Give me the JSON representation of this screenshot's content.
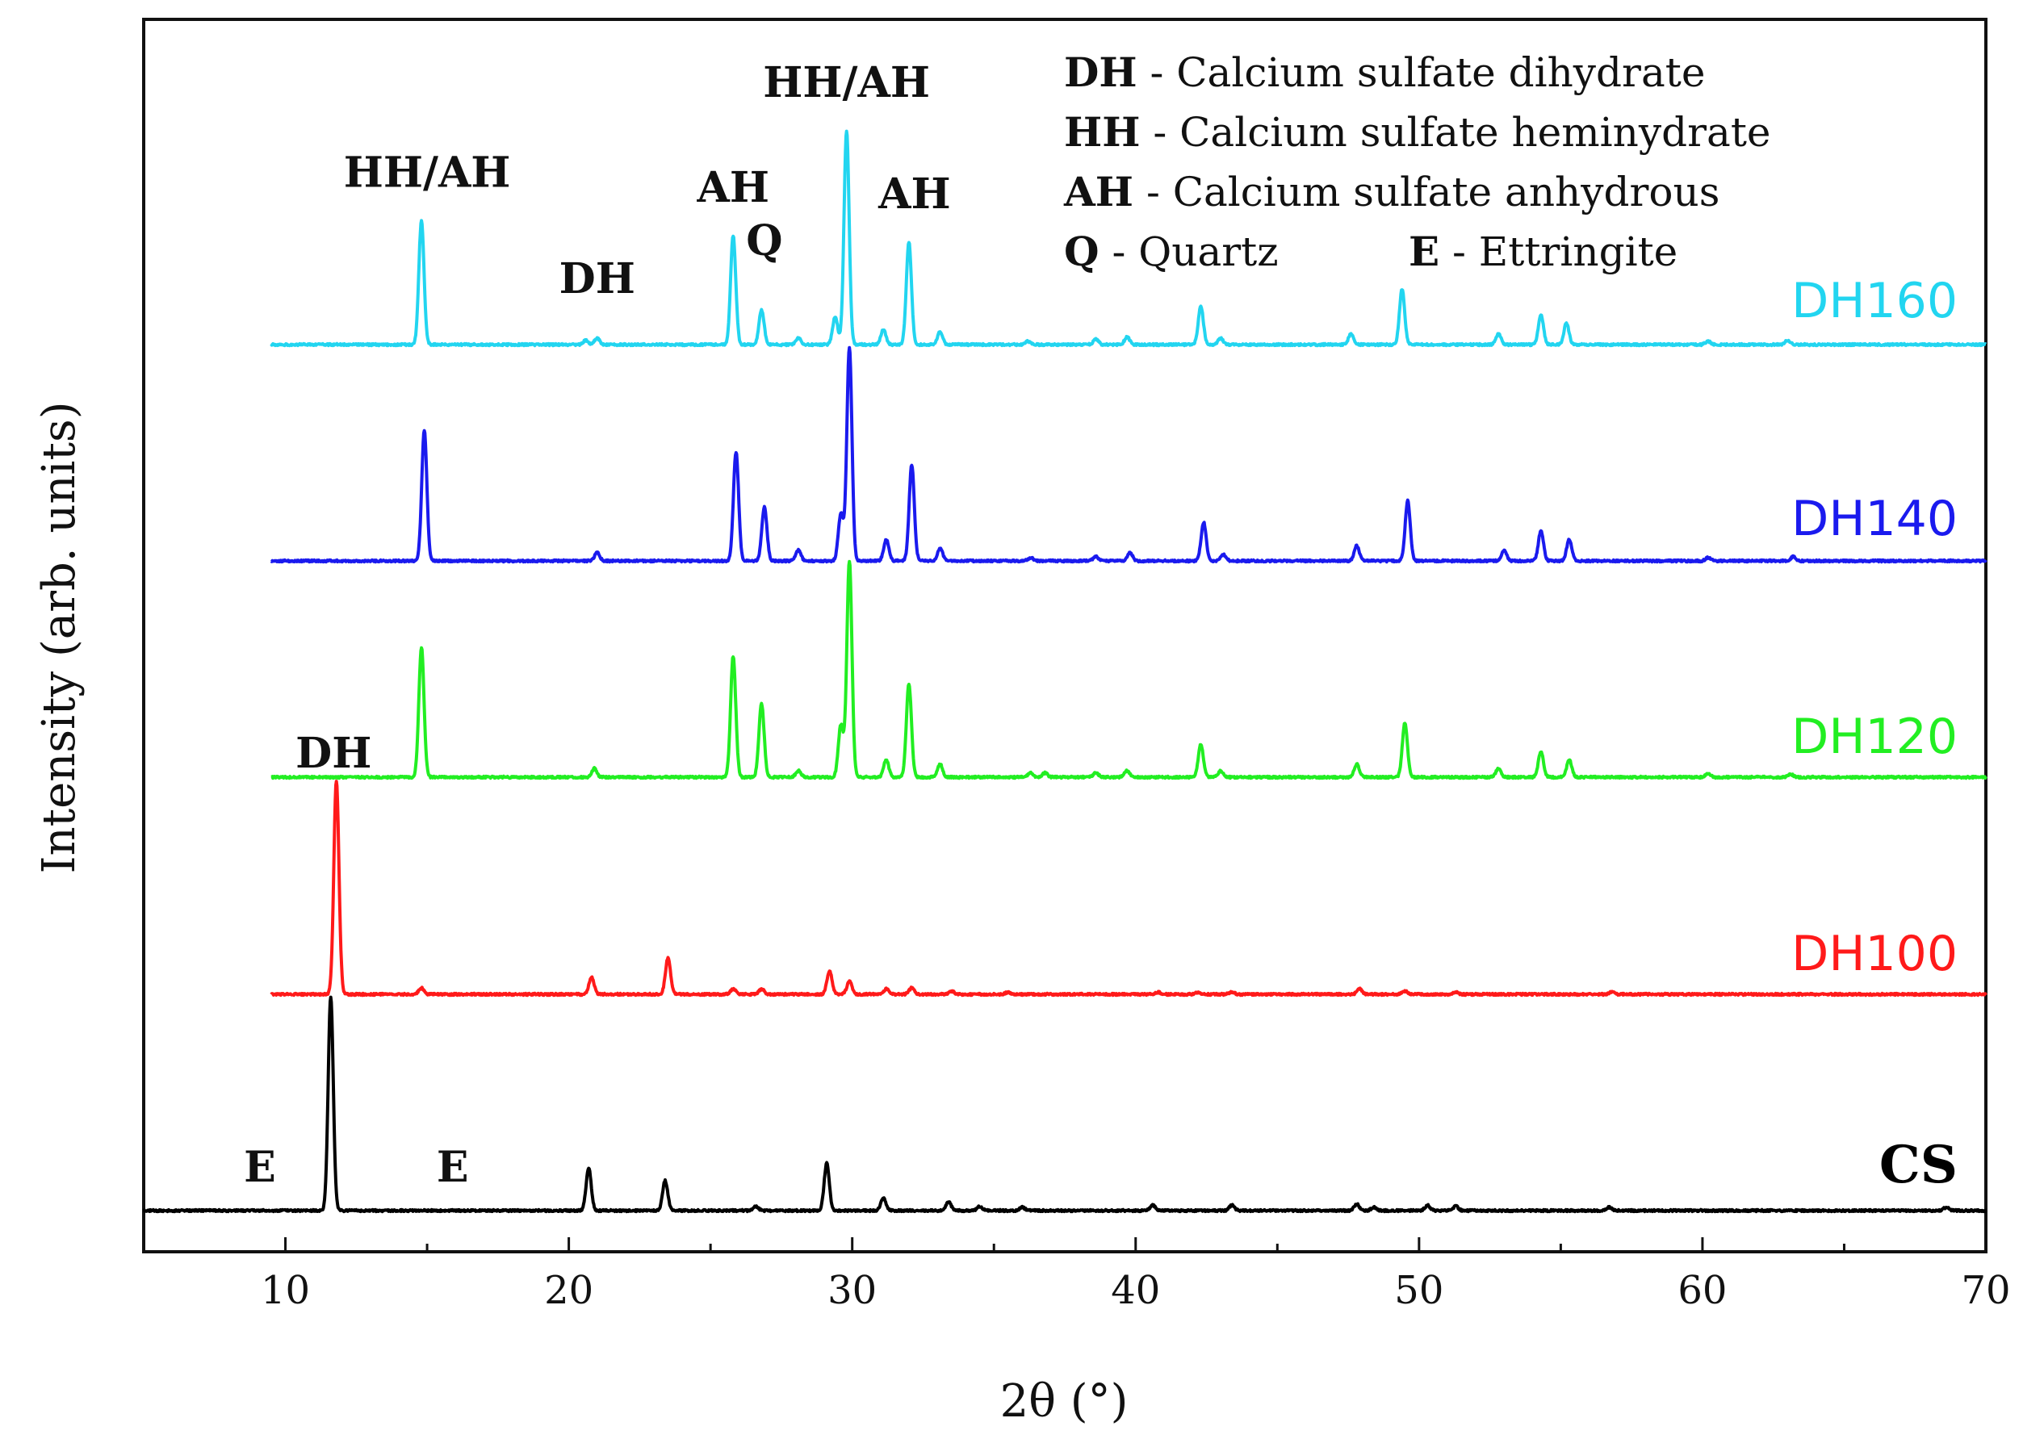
{
  "chart_data": {
    "type": "line",
    "title": "",
    "xlabel": "2θ (°)",
    "ylabel": "Intensity (arb. units)",
    "xlim": [
      5,
      70
    ],
    "xticks": [
      10,
      20,
      30,
      40,
      50,
      60,
      70
    ],
    "y_scale": "arbitrary, vertically offset traces",
    "grid": false,
    "legend_placement": "top-right",
    "legend": [
      {
        "key": "DH",
        "desc": " - Calcium sulfate dihydrate"
      },
      {
        "key": "HH",
        "desc": " - Calcium sulfate heminydrate"
      },
      {
        "key": "AH",
        "desc": " - Calcium sulfate anhydrous"
      },
      {
        "key": "Q",
        "desc": " - Quartz"
      },
      {
        "key": "E",
        "desc": " - Ettringite"
      }
    ],
    "series": [
      {
        "name": "CS",
        "color": "#000000",
        "x_range": [
          5,
          70
        ],
        "peaks": [
          [
            11.6,
            100
          ],
          [
            20.7,
            20
          ],
          [
            23.4,
            14
          ],
          [
            26.6,
            2
          ],
          [
            29.1,
            22
          ],
          [
            31.1,
            6
          ],
          [
            33.4,
            4
          ],
          [
            34.5,
            2
          ],
          [
            36.0,
            1.5
          ],
          [
            40.6,
            2.5
          ],
          [
            43.4,
            2.5
          ],
          [
            47.8,
            3
          ],
          [
            48.4,
            1.5
          ],
          [
            50.3,
            2.5
          ],
          [
            51.3,
            2
          ],
          [
            56.7,
            1.5
          ],
          [
            68.6,
            1.5
          ]
        ]
      },
      {
        "name": "DH100",
        "color": "#ff1a1a",
        "x_range": [
          9.5,
          70
        ],
        "peaks": [
          [
            11.8,
            100
          ],
          [
            14.8,
            3
          ],
          [
            20.8,
            8
          ],
          [
            23.5,
            17
          ],
          [
            25.8,
            2.5
          ],
          [
            26.8,
            2.5
          ],
          [
            29.2,
            11
          ],
          [
            29.9,
            6
          ],
          [
            31.2,
            2.5
          ],
          [
            32.1,
            3
          ],
          [
            33.5,
            1.5
          ],
          [
            35.5,
            1
          ],
          [
            40.8,
            1
          ],
          [
            42.2,
            1
          ],
          [
            43.4,
            1
          ],
          [
            47.9,
            2.5
          ],
          [
            49.5,
            1.5
          ],
          [
            51.3,
            1
          ],
          [
            56.8,
            1
          ]
        ]
      },
      {
        "name": "DH120",
        "color": "#22ee22",
        "x_range": [
          9.5,
          70
        ],
        "peaks": [
          [
            14.8,
            60
          ],
          [
            20.9,
            4
          ],
          [
            25.8,
            56
          ],
          [
            26.8,
            34
          ],
          [
            28.1,
            3
          ],
          [
            29.6,
            24
          ],
          [
            29.9,
            100
          ],
          [
            31.2,
            8
          ],
          [
            32.0,
            43
          ],
          [
            33.1,
            6
          ],
          [
            36.3,
            2
          ],
          [
            36.8,
            2
          ],
          [
            38.6,
            2
          ],
          [
            39.7,
            3
          ],
          [
            42.3,
            15
          ],
          [
            43.0,
            3
          ],
          [
            47.8,
            6
          ],
          [
            49.5,
            25
          ],
          [
            52.8,
            4
          ],
          [
            54.3,
            12
          ],
          [
            55.3,
            8
          ],
          [
            60.2,
            1.5
          ],
          [
            63.1,
            1.5
          ]
        ]
      },
      {
        "name": "DH140",
        "color": "#1a1aee",
        "x_range": [
          9.5,
          70
        ],
        "peaks": [
          [
            14.9,
            61
          ],
          [
            21.0,
            4
          ],
          [
            25.9,
            51
          ],
          [
            26.9,
            25
          ],
          [
            28.1,
            5
          ],
          [
            29.6,
            22
          ],
          [
            29.9,
            100
          ],
          [
            31.2,
            10
          ],
          [
            32.1,
            45
          ],
          [
            33.1,
            6
          ],
          [
            36.3,
            1.5
          ],
          [
            38.6,
            2
          ],
          [
            39.8,
            4
          ],
          [
            42.4,
            18
          ],
          [
            43.1,
            3
          ],
          [
            47.8,
            7
          ],
          [
            49.6,
            28
          ],
          [
            53.0,
            5
          ],
          [
            54.3,
            14
          ],
          [
            55.3,
            10
          ],
          [
            60.2,
            1.5
          ],
          [
            63.2,
            2
          ]
        ]
      },
      {
        "name": "DH160",
        "color": "#22d5f0",
        "x_range": [
          9.5,
          70
        ],
        "peaks": [
          [
            14.8,
            58
          ],
          [
            20.6,
            2
          ],
          [
            21.0,
            3
          ],
          [
            25.8,
            51
          ],
          [
            26.8,
            16
          ],
          [
            28.1,
            3
          ],
          [
            29.4,
            13
          ],
          [
            29.8,
            100
          ],
          [
            31.1,
            7
          ],
          [
            32.0,
            48
          ],
          [
            33.1,
            6
          ],
          [
            36.2,
            1.5
          ],
          [
            38.6,
            2.5
          ],
          [
            39.7,
            3.5
          ],
          [
            42.3,
            18
          ],
          [
            43.0,
            3
          ],
          [
            47.6,
            5
          ],
          [
            49.4,
            26
          ],
          [
            52.8,
            5
          ],
          [
            54.3,
            14
          ],
          [
            55.2,
            10
          ],
          [
            60.2,
            1.5
          ],
          [
            63.0,
            2
          ]
        ]
      }
    ],
    "annotations": [
      {
        "text": "HH/AH",
        "x": 15.0,
        "series": "DH160",
        "peak_height": 58
      },
      {
        "text": "DH",
        "x": 21.0,
        "series": "DH160",
        "peak_height": 3
      },
      {
        "text": "AH",
        "x": 25.8,
        "series": "DH160",
        "peak_height": 51
      },
      {
        "text": "Q",
        "x": 26.9,
        "series": "DH160",
        "peak_height": 16
      },
      {
        "text": "HH/AH",
        "x": 29.8,
        "series": "DH160",
        "peak_height": 100
      },
      {
        "text": "AH",
        "x": 32.2,
        "series": "DH160",
        "peak_height": 48
      },
      {
        "text": "DH",
        "x": 11.7,
        "series": "DH100",
        "peak_height": 100
      },
      {
        "text": "E",
        "x": 9.1,
        "series": "CS",
        "peak_height": 0
      },
      {
        "text": "E",
        "x": 15.9,
        "series": "CS",
        "peak_height": 0
      }
    ]
  }
}
